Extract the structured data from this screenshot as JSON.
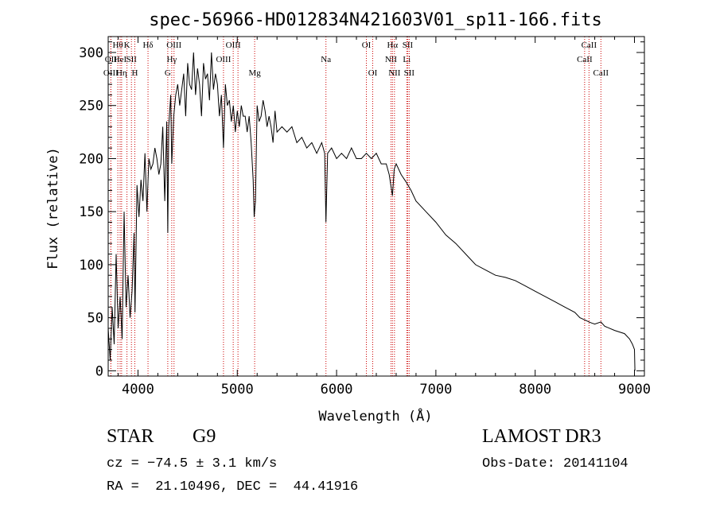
{
  "chart_data": {
    "type": "line",
    "title": "spec-56966-HD012834N421603V01_sp11-166.fits",
    "xlabel": "Wavelength (Å)",
    "ylabel": "Flux (relative)",
    "xlim": [
      3700,
      9100
    ],
    "ylim": [
      -5,
      315
    ],
    "xticks": [
      4000,
      5000,
      6000,
      7000,
      8000,
      9000
    ],
    "yticks": [
      0,
      50,
      100,
      150,
      200,
      250,
      300
    ],
    "grid": false,
    "series": [
      {
        "x": [
          3700,
          3720,
          3740,
          3760,
          3780,
          3800,
          3820,
          3840,
          3860,
          3880,
          3900,
          3920,
          3940,
          3960,
          3970,
          3990,
          4010,
          4030,
          4050,
          4070,
          4090,
          4101,
          4110,
          4130,
          4150,
          4170,
          4190,
          4210,
          4230,
          4250,
          4270,
          4290,
          4300,
          4310,
          4330,
          4340,
          4360,
          4380,
          4400,
          4420,
          4440,
          4460,
          4480,
          4500,
          4520,
          4540,
          4560,
          4580,
          4600,
          4620,
          4640,
          4660,
          4680,
          4700,
          4720,
          4740,
          4760,
          4780,
          4800,
          4820,
          4840,
          4861,
          4880,
          4900,
          4920,
          4940,
          4960,
          4980,
          5000,
          5020,
          5040,
          5060,
          5080,
          5100,
          5120,
          5140,
          5160,
          5170,
          5183,
          5200,
          5220,
          5240,
          5260,
          5280,
          5300,
          5320,
          5340,
          5360,
          5380,
          5400,
          5450,
          5500,
          5550,
          5600,
          5650,
          5700,
          5750,
          5800,
          5850,
          5880,
          5893,
          5910,
          5950,
          6000,
          6050,
          6100,
          6150,
          6200,
          6250,
          6300,
          6350,
          6400,
          6450,
          6500,
          6530,
          6563,
          6580,
          6600,
          6650,
          6700,
          6750,
          6800,
          6900,
          7000,
          7100,
          7200,
          7300,
          7400,
          7500,
          7600,
          7700,
          7800,
          7900,
          8000,
          8100,
          8200,
          8300,
          8400,
          8450,
          8498,
          8520,
          8542,
          8570,
          8600,
          8662,
          8700,
          8800,
          8900,
          8950,
          8980,
          9000,
          9005
        ],
        "y": [
          40,
          10,
          60,
          25,
          110,
          40,
          70,
          30,
          150,
          60,
          90,
          50,
          75,
          130,
          55,
          175,
          145,
          180,
          160,
          205,
          150,
          180,
          200,
          190,
          195,
          210,
          200,
          185,
          195,
          230,
          160,
          235,
          130,
          230,
          260,
          195,
          240,
          260,
          270,
          250,
          265,
          280,
          240,
          290,
          270,
          265,
          300,
          260,
          285,
          270,
          240,
          290,
          275,
          280,
          255,
          300,
          265,
          280,
          270,
          240,
          260,
          210,
          270,
          250,
          255,
          235,
          250,
          225,
          245,
          230,
          250,
          240,
          240,
          225,
          240,
          215,
          180,
          145,
          160,
          250,
          235,
          240,
          255,
          245,
          230,
          240,
          230,
          215,
          245,
          225,
          230,
          225,
          230,
          215,
          220,
          210,
          215,
          205,
          215,
          205,
          140,
          205,
          210,
          200,
          205,
          200,
          210,
          200,
          200,
          205,
          200,
          205,
          195,
          195,
          185,
          165,
          190,
          195,
          185,
          178,
          170,
          160,
          150,
          140,
          128,
          120,
          110,
          100,
          95,
          90,
          88,
          85,
          80,
          75,
          70,
          65,
          60,
          55,
          50,
          48,
          47,
          46,
          45,
          44,
          46,
          42,
          38,
          35,
          30,
          25,
          20,
          0
        ]
      }
    ],
    "lines": [
      {
        "wl": 3797,
        "label": "Hθ",
        "row": 1
      },
      {
        "wl": 3727,
        "label": "OII",
        "row": 2
      },
      {
        "wl": 3820,
        "label": "HeI",
        "row": 2
      },
      {
        "wl": 3727,
        "label": "OIII",
        "row": 3
      },
      {
        "wl": 3835,
        "label": "Hη",
        "row": 3
      },
      {
        "wl": 3889,
        "label": "K",
        "row": 1
      },
      {
        "wl": 3934,
        "label": "SII",
        "row": 2
      },
      {
        "wl": 3968,
        "label": "H",
        "row": 3
      },
      {
        "wl": 4101,
        "label": "Hδ",
        "row": 1
      },
      {
        "wl": 4300,
        "label": "G",
        "row": 3
      },
      {
        "wl": 4340,
        "label": "Hγ",
        "row": 2
      },
      {
        "wl": 4363,
        "label": "OIII",
        "row": 1
      },
      {
        "wl": 4861,
        "label": "OIII",
        "row": 2
      },
      {
        "wl": 4959,
        "label": "OIII",
        "row": 1
      },
      {
        "wl": 5007,
        "label": "",
        "row": 0
      },
      {
        "wl": 5175,
        "label": "Mg",
        "row": 3
      },
      {
        "wl": 5893,
        "label": "Na",
        "row": 2
      },
      {
        "wl": 6300,
        "label": "OI",
        "row": 1
      },
      {
        "wl": 6364,
        "label": "OI",
        "row": 3
      },
      {
        "wl": 6548,
        "label": "NII",
        "row": 2
      },
      {
        "wl": 6563,
        "label": "Hα",
        "row": 1
      },
      {
        "wl": 6583,
        "label": "NII",
        "row": 3
      },
      {
        "wl": 6707,
        "label": "Li",
        "row": 2
      },
      {
        "wl": 6716,
        "label": "SII",
        "row": 1
      },
      {
        "wl": 6731,
        "label": "SII",
        "row": 3
      },
      {
        "wl": 8498,
        "label": "CaII",
        "row": 2
      },
      {
        "wl": 8542,
        "label": "CaII",
        "row": 1
      },
      {
        "wl": 8662,
        "label": "CaII",
        "row": 3
      }
    ]
  },
  "info": {
    "object_class": "STAR",
    "subclass": "G9",
    "survey": "LAMOST DR3",
    "cz": "cz = −74.5 ± 3.1 km/s",
    "obs_date": "Obs-Date: 20141104",
    "coords": "RA =  21.10496, DEC =  44.41916"
  },
  "colors": {
    "spectrum": "#000000",
    "line_markers": "#cc0000",
    "axes": "#000000"
  }
}
